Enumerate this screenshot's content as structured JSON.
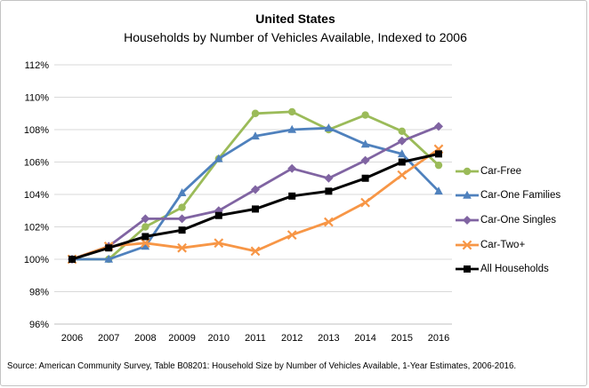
{
  "source_note": "Source: American Community Survey, Table B08201: Household Size by Number of Vehicles Available, 1-Year Estimates, 2006-2016.",
  "chart_data": {
    "type": "line",
    "title": "United States",
    "subtitle": "Households by Number of Vehicles Available, Indexed to 2006",
    "xlabel": "",
    "ylabel": "",
    "x_labels": [
      "2006",
      "2007",
      "2008",
      "20009",
      "2010",
      "2011",
      "2012",
      "2013",
      "2014",
      "2015",
      "2016"
    ],
    "y_ticks": [
      "112%",
      "110%",
      "108%",
      "106%",
      "104%",
      "102%",
      "100%",
      "98%",
      "96%"
    ],
    "ylim": [
      96,
      112
    ],
    "grid": "horizontal-only",
    "legend_position": "right",
    "colors": {
      "car_free": "#9BBB59",
      "car_one_families": "#4F81BD",
      "car_one_singles": "#8064A2",
      "car_two_plus": "#F79646",
      "all_households": "#000000",
      "gridline": "#D9D9D9",
      "axis_line": "#BFBFBF"
    },
    "series": [
      {
        "name": "Car-Free",
        "color": "#9BBB59",
        "marker": "circle",
        "values": [
          100,
          100,
          102,
          103.2,
          106.2,
          109,
          109.1,
          108,
          108.9,
          107.9,
          105.8
        ]
      },
      {
        "name": "Car-One Families",
        "color": "#4F81BD",
        "marker": "triangle",
        "values": [
          100,
          100,
          100.8,
          104.1,
          106.2,
          107.6,
          108,
          108.1,
          107.1,
          106.5,
          104.2
        ]
      },
      {
        "name": "Car-One Singles",
        "color": "#8064A2",
        "marker": "diamond",
        "values": [
          100,
          100.8,
          102.5,
          102.5,
          103,
          104.3,
          105.6,
          105,
          106.1,
          107.3,
          108.2
        ]
      },
      {
        "name": "Car-Two+",
        "color": "#F79646",
        "marker": "x",
        "values": [
          100,
          100.8,
          101,
          100.7,
          101,
          100.5,
          101.5,
          102.3,
          103.5,
          105.2,
          106.8
        ]
      },
      {
        "name": "All Households",
        "color": "#000000",
        "marker": "square",
        "values": [
          100,
          100.7,
          101.4,
          101.8,
          102.7,
          103.1,
          103.9,
          104.2,
          105,
          106,
          106.5
        ]
      }
    ]
  }
}
